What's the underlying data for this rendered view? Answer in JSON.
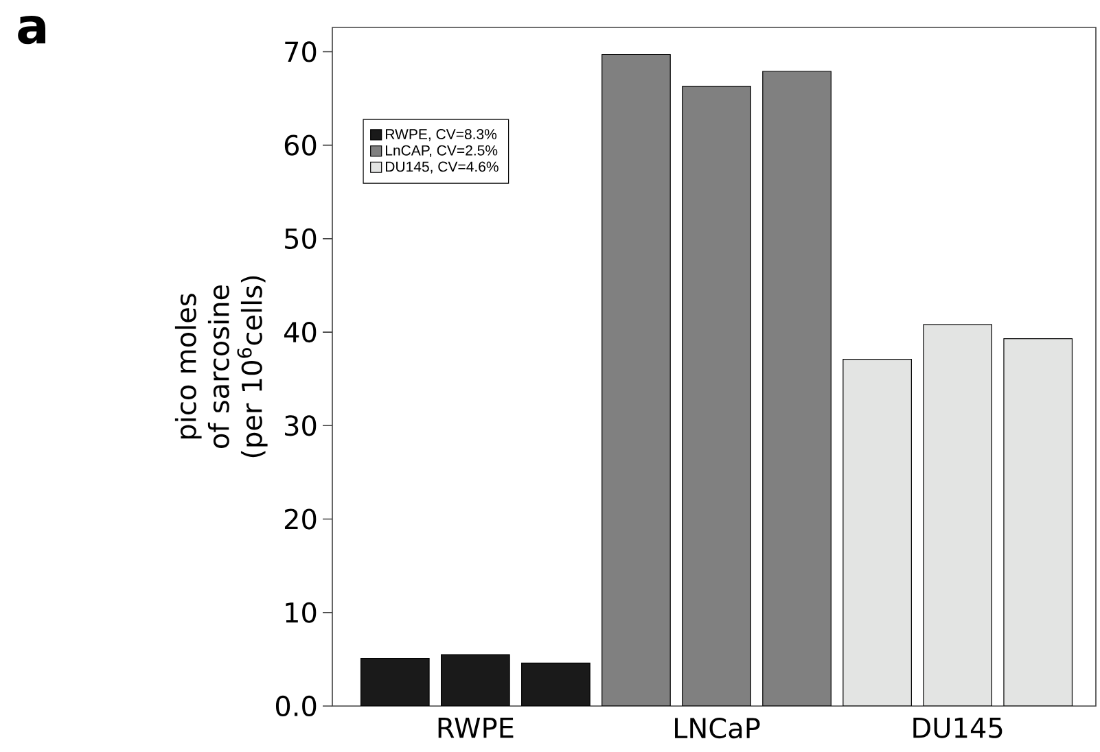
{
  "chart_data": {
    "type": "bar",
    "ylabel": "pico moles of sarcosine (per 10$^{6}$cells)",
    "annotations": [
      "a"
    ],
    "categories": [
      null,
      "RWPE",
      null,
      null,
      "LNCaP",
      null,
      null,
      "DU145",
      null
    ],
    "series": [
      {
        "name": "RWPE, CV=8.3%",
        "color": "#1a1a1a",
        "values": [
          5.1,
          5.5,
          4.6,
          null,
          null,
          null,
          null,
          null,
          null
        ]
      },
      {
        "name": "LnCAP, CV=2.5%",
        "color": "#808080",
        "values": [
          null,
          null,
          null,
          69.7,
          66.3,
          67.9,
          null,
          null,
          null
        ]
      },
      {
        "name": "DU145, CV=4.6%",
        "color": "#e3e4e3",
        "values": [
          null,
          null,
          null,
          null,
          null,
          null,
          37.1,
          40.8,
          39.3
        ]
      }
    ],
    "ylim": [
      0,
      72.6
    ],
    "yticks": [
      {
        "value": 0,
        "label": "0.0"
      },
      10,
      20,
      30,
      40,
      50,
      60,
      70
    ],
    "legend": "top left"
  }
}
